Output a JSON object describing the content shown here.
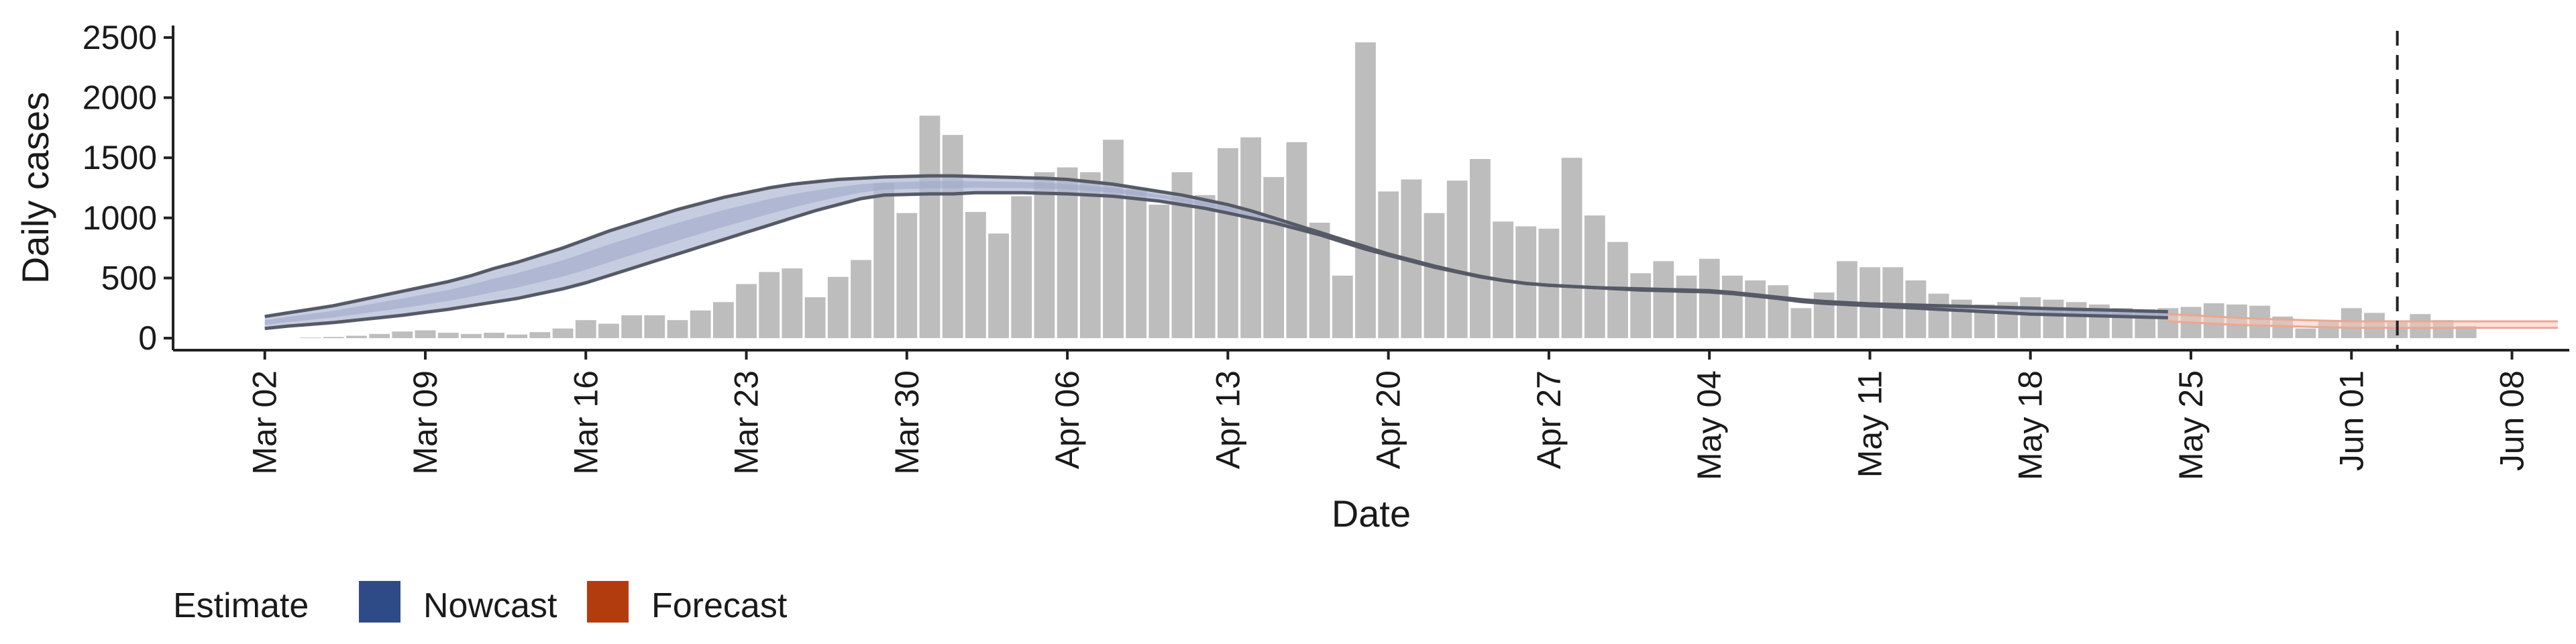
{
  "chart_data": {
    "type": "bar+line",
    "title": "",
    "xlabel": "Date",
    "ylabel": "Daily cases",
    "ylim": [
      -100,
      2600
    ],
    "yticks": [
      0,
      500,
      1000,
      1500,
      2000,
      2500
    ],
    "x_ticks": [
      {
        "label": "Mar 02",
        "day": 0
      },
      {
        "label": "Mar 09",
        "day": 7
      },
      {
        "label": "Mar 16",
        "day": 14
      },
      {
        "label": "Mar 23",
        "day": 21
      },
      {
        "label": "Mar 30",
        "day": 28
      },
      {
        "label": "Apr 06",
        "day": 35
      },
      {
        "label": "Apr 13",
        "day": 42
      },
      {
        "label": "Apr 20",
        "day": 49
      },
      {
        "label": "Apr 27",
        "day": 56
      },
      {
        "label": "May 04",
        "day": 63
      },
      {
        "label": "May 11",
        "day": 70
      },
      {
        "label": "May 18",
        "day": 77
      },
      {
        "label": "May 25",
        "day": 84
      },
      {
        "label": "Jun 01",
        "day": 91
      },
      {
        "label": "Jun 08",
        "day": 98
      }
    ],
    "xlim_days": [
      -4,
      100.5
    ],
    "bar_start_day": 2,
    "daily_cases": [
      5,
      10,
      20,
      35,
      55,
      65,
      45,
      35,
      45,
      30,
      50,
      80,
      150,
      120,
      190,
      190,
      150,
      230,
      300,
      450,
      550,
      580,
      340,
      510,
      650,
      1290,
      1040,
      1850,
      1690,
      1050,
      870,
      1180,
      1380,
      1420,
      1380,
      1650,
      1240,
      1110,
      1380,
      1190,
      1580,
      1670,
      1340,
      1630,
      960,
      520,
      2460,
      1220,
      1320,
      1040,
      1310,
      1490,
      970,
      930,
      910,
      1500,
      1020,
      800,
      540,
      640,
      520,
      660,
      520,
      480,
      440,
      250,
      380,
      640,
      590,
      590,
      480,
      370,
      320,
      280,
      300,
      340,
      320,
      300,
      280,
      250,
      240,
      250,
      260,
      290,
      280,
      270,
      180,
      80,
      150,
      250,
      210,
      130,
      200,
      150,
      100
    ],
    "series": [
      {
        "name": "Nowcast",
        "color": "#2e4a87",
        "band_color": "#b4bcd6",
        "start_day": 0,
        "upper": [
          180,
          210,
          240,
          270,
          310,
          350,
          390,
          430,
          470,
          520,
          580,
          630,
          690,
          750,
          820,
          890,
          950,
          1010,
          1070,
          1120,
          1170,
          1210,
          1250,
          1280,
          1300,
          1320,
          1330,
          1340,
          1345,
          1350,
          1350,
          1345,
          1340,
          1335,
          1330,
          1320,
          1300,
          1280,
          1250,
          1220,
          1190,
          1150,
          1110,
          1060,
          1000,
          940,
          880,
          820,
          760,
          700,
          650,
          600,
          555,
          515,
          480,
          455,
          440,
          430,
          420,
          415,
          410,
          405,
          400,
          395,
          380,
          360,
          340,
          320,
          305,
          295,
          285,
          280,
          275,
          270,
          265,
          260,
          255,
          250,
          245,
          240,
          235,
          230,
          225,
          220
        ],
        "lower": [
          80,
          100,
          115,
          130,
          150,
          170,
          190,
          215,
          240,
          270,
          300,
          330,
          370,
          410,
          460,
          520,
          580,
          640,
          700,
          760,
          820,
          880,
          940,
          1000,
          1060,
          1110,
          1160,
          1190,
          1195,
          1200,
          1200,
          1210,
          1210,
          1210,
          1205,
          1200,
          1190,
          1180,
          1160,
          1140,
          1110,
          1080,
          1040,
          1000,
          960,
          910,
          860,
          800,
          740,
          690,
          640,
          590,
          550,
          510,
          480,
          455,
          440,
          430,
          420,
          410,
          400,
          395,
          390,
          385,
          370,
          350,
          330,
          305,
          290,
          280,
          270,
          260,
          250,
          240,
          230,
          220,
          210,
          200,
          195,
          190,
          185,
          180,
          175,
          170
        ]
      },
      {
        "name": "Forecast",
        "color": "#b33c0e",
        "band_color": "#f5c9b9",
        "start_day": 83,
        "upper": [
          200,
          190,
          180,
          170,
          160,
          155,
          150,
          145,
          140,
          140,
          140,
          140,
          140,
          140,
          140,
          140,
          140,
          140
        ],
        "lower": [
          140,
          130,
          120,
          110,
          105,
          100,
          95,
          90,
          85,
          85,
          85,
          85,
          85,
          85,
          85,
          85,
          85,
          85
        ]
      }
    ],
    "vline_day": 93,
    "legend": {
      "title": "Estimate",
      "position": "bottom-left",
      "items": [
        {
          "name": "Nowcast",
          "color": "#2e4a87"
        },
        {
          "name": "Forecast",
          "color": "#b33c0e"
        }
      ]
    }
  }
}
